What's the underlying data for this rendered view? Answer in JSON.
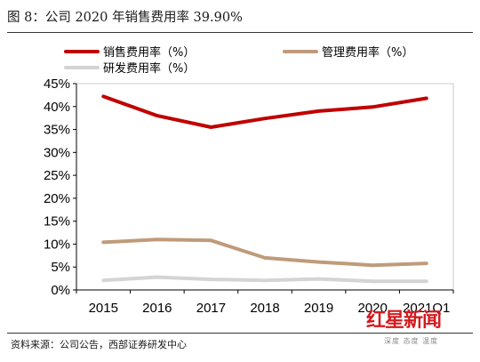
{
  "header": {
    "title": "图 8：公司 2020 年销售费用率 39.90%"
  },
  "footer": {
    "source": "资料来源：公司公告，西部证券研发中心"
  },
  "watermark": {
    "text": "红星新闻",
    "sub": "深度 态度 温度"
  },
  "colors": {
    "sales": "#c00000",
    "mgmt": "#bf9b7a",
    "rd": "#d4d4d4",
    "axis": "#000000"
  },
  "chart_data": {
    "type": "line",
    "categories": [
      "2015",
      "2016",
      "2017",
      "2018",
      "2019",
      "2020",
      "2021Q1"
    ],
    "ylim": [
      0,
      45
    ],
    "yticks": [
      0,
      5,
      10,
      15,
      20,
      25,
      30,
      35,
      40,
      45
    ],
    "ytick_labels": [
      "0%",
      "5%",
      "10%",
      "15%",
      "20%",
      "25%",
      "30%",
      "35%",
      "40%",
      "45%"
    ],
    "series": [
      {
        "name": "销售费用率（%）",
        "key": "sales",
        "values": [
          42.2,
          38.0,
          35.5,
          37.4,
          39.0,
          39.9,
          41.8
        ]
      },
      {
        "name": "管理费用率（%）",
        "key": "mgmt",
        "values": [
          10.4,
          11.0,
          10.8,
          7.0,
          6.1,
          5.4,
          5.8
        ]
      },
      {
        "name": "研发费用率（%）",
        "key": "rd",
        "values": [
          2.1,
          2.8,
          2.3,
          2.1,
          2.4,
          1.9,
          1.9
        ]
      }
    ],
    "legend_position": "top-left"
  }
}
